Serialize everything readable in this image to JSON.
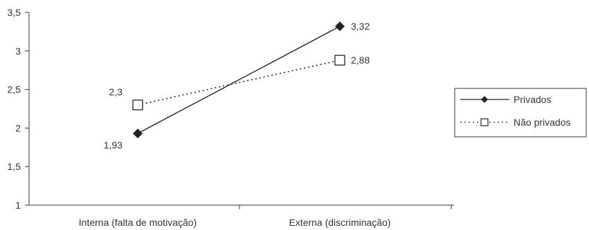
{
  "chart_data": {
    "type": "line",
    "categories": [
      "Interna (falta de motivação)",
      "Externa (discriminação)"
    ],
    "series": [
      {
        "name": "Privados",
        "values": [
          1.93,
          3.32
        ],
        "labels": [
          "1,93",
          "3,32"
        ],
        "color": "#222222",
        "line_style": "solid",
        "marker": "filled-diamond"
      },
      {
        "name": "Não privados",
        "values": [
          2.3,
          2.88
        ],
        "labels": [
          "2,3",
          "2,88"
        ],
        "color": "#222222",
        "line_style": "dotted",
        "marker": "open-square"
      }
    ],
    "ylim": [
      1,
      3.5
    ],
    "yticks": [
      1,
      1.5,
      2,
      2.5,
      3,
      3.5
    ],
    "ytick_labels": [
      "1",
      "1,5",
      "2",
      "2,5",
      "3",
      "3,5"
    ],
    "grid": false,
    "legend_position": "right",
    "title": "",
    "xlabel": "",
    "ylabel": ""
  }
}
